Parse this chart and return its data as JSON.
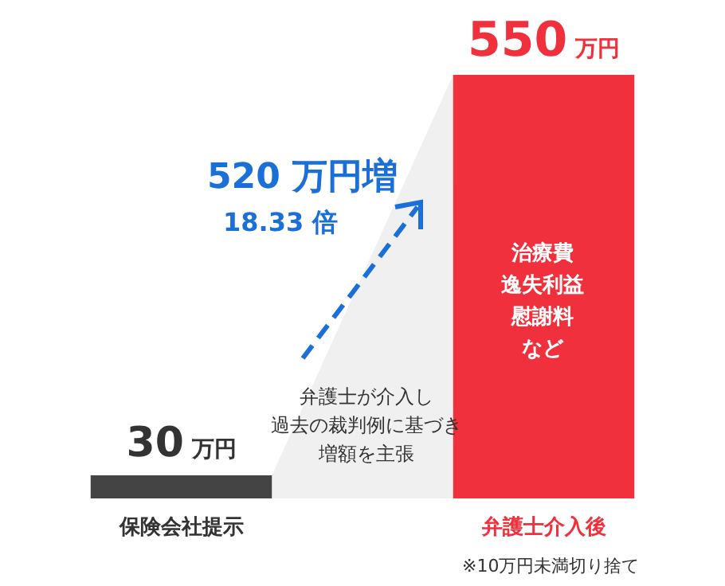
{
  "chart_data": {
    "type": "bar",
    "categories": [
      "保険会社提示",
      "弁護士介入後"
    ],
    "values": [
      30,
      550
    ],
    "colors": [
      "#444444",
      "#f0303c"
    ],
    "data_labels": true,
    "value_labels": [
      "30 万円",
      "550 万円"
    ],
    "legend": false,
    "annotations": [
      "520 万円増",
      "18.33 倍",
      "弁護士が介入し",
      "過去の裁判例に基づき",
      "増額を主張",
      "治療費",
      "逸失利益",
      "慰謝料",
      "など",
      "※10万円未満切り捨て"
    ]
  }
}
